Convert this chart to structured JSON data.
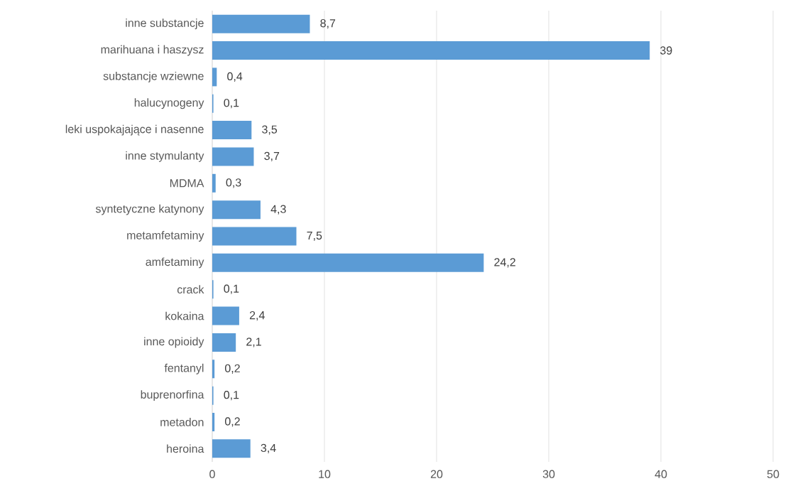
{
  "chart_data": {
    "type": "bar",
    "orientation": "horizontal",
    "categories": [
      "inne substancje",
      "marihuana i haszysz",
      "substancje wziewne",
      "halucynogeny",
      "leki uspokajające i nasenne",
      "inne stymulanty",
      "MDMA",
      "syntetyczne katynony",
      "metamfetaminy",
      "amfetaminy",
      "crack",
      "kokaina",
      "inne opioidy",
      "fentanyl",
      "buprenorfina",
      "metadon",
      "heroina"
    ],
    "values": [
      8.7,
      39,
      0.4,
      0.1,
      3.5,
      3.7,
      0.3,
      4.3,
      7.5,
      24.2,
      0.1,
      2.4,
      2.1,
      0.2,
      0.1,
      0.2,
      3.4
    ],
    "value_labels": [
      "8,7",
      "39",
      "0,4",
      "0,1",
      "3,5",
      "3,7",
      "0,3",
      "4,3",
      "7,5",
      "24,2",
      "0,1",
      "2,4",
      "2,1",
      "0,2",
      "0,1",
      "0,2",
      "3,4"
    ],
    "color": "#5b9bd5",
    "xlim": [
      0,
      50
    ],
    "xticks": [
      0,
      10,
      20,
      30,
      40,
      50
    ],
    "grid": "x"
  }
}
